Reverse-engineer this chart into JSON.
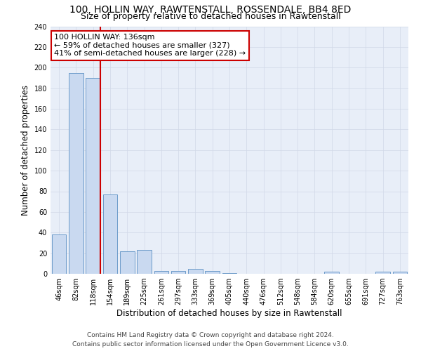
{
  "title": "100, HOLLIN WAY, RAWTENSTALL, ROSSENDALE, BB4 8ED",
  "subtitle": "Size of property relative to detached houses in Rawtenstall",
  "xlabel": "Distribution of detached houses by size in Rawtenstall",
  "ylabel": "Number of detached properties",
  "categories": [
    "46sqm",
    "82sqm",
    "118sqm",
    "154sqm",
    "189sqm",
    "225sqm",
    "261sqm",
    "297sqm",
    "333sqm",
    "369sqm",
    "405sqm",
    "440sqm",
    "476sqm",
    "512sqm",
    "548sqm",
    "584sqm",
    "620sqm",
    "655sqm",
    "691sqm",
    "727sqm",
    "763sqm"
  ],
  "values": [
    38,
    195,
    190,
    77,
    22,
    23,
    3,
    3,
    5,
    3,
    1,
    0,
    0,
    0,
    0,
    0,
    2,
    0,
    0,
    2,
    2
  ],
  "bar_color": "#c9d9f0",
  "bar_edge_color": "#5a8fc3",
  "grid_color": "#d0d8e8",
  "background_color": "#e8eef8",
  "annotation_box_color": "#ffffff",
  "annotation_border_color": "#cc0000",
  "annotation_line_color": "#cc0000",
  "annotation_text": "100 HOLLIN WAY: 136sqm\n← 59% of detached houses are smaller (327)\n41% of semi-detached houses are larger (228) →",
  "ylim": [
    0,
    240
  ],
  "yticks": [
    0,
    20,
    40,
    60,
    80,
    100,
    120,
    140,
    160,
    180,
    200,
    220,
    240
  ],
  "footer_line1": "Contains HM Land Registry data © Crown copyright and database right 2024.",
  "footer_line2": "Contains public sector information licensed under the Open Government Licence v3.0.",
  "title_fontsize": 10,
  "subtitle_fontsize": 9,
  "annotation_fontsize": 8,
  "axis_label_fontsize": 8.5,
  "tick_fontsize": 7,
  "footer_fontsize": 6.5
}
